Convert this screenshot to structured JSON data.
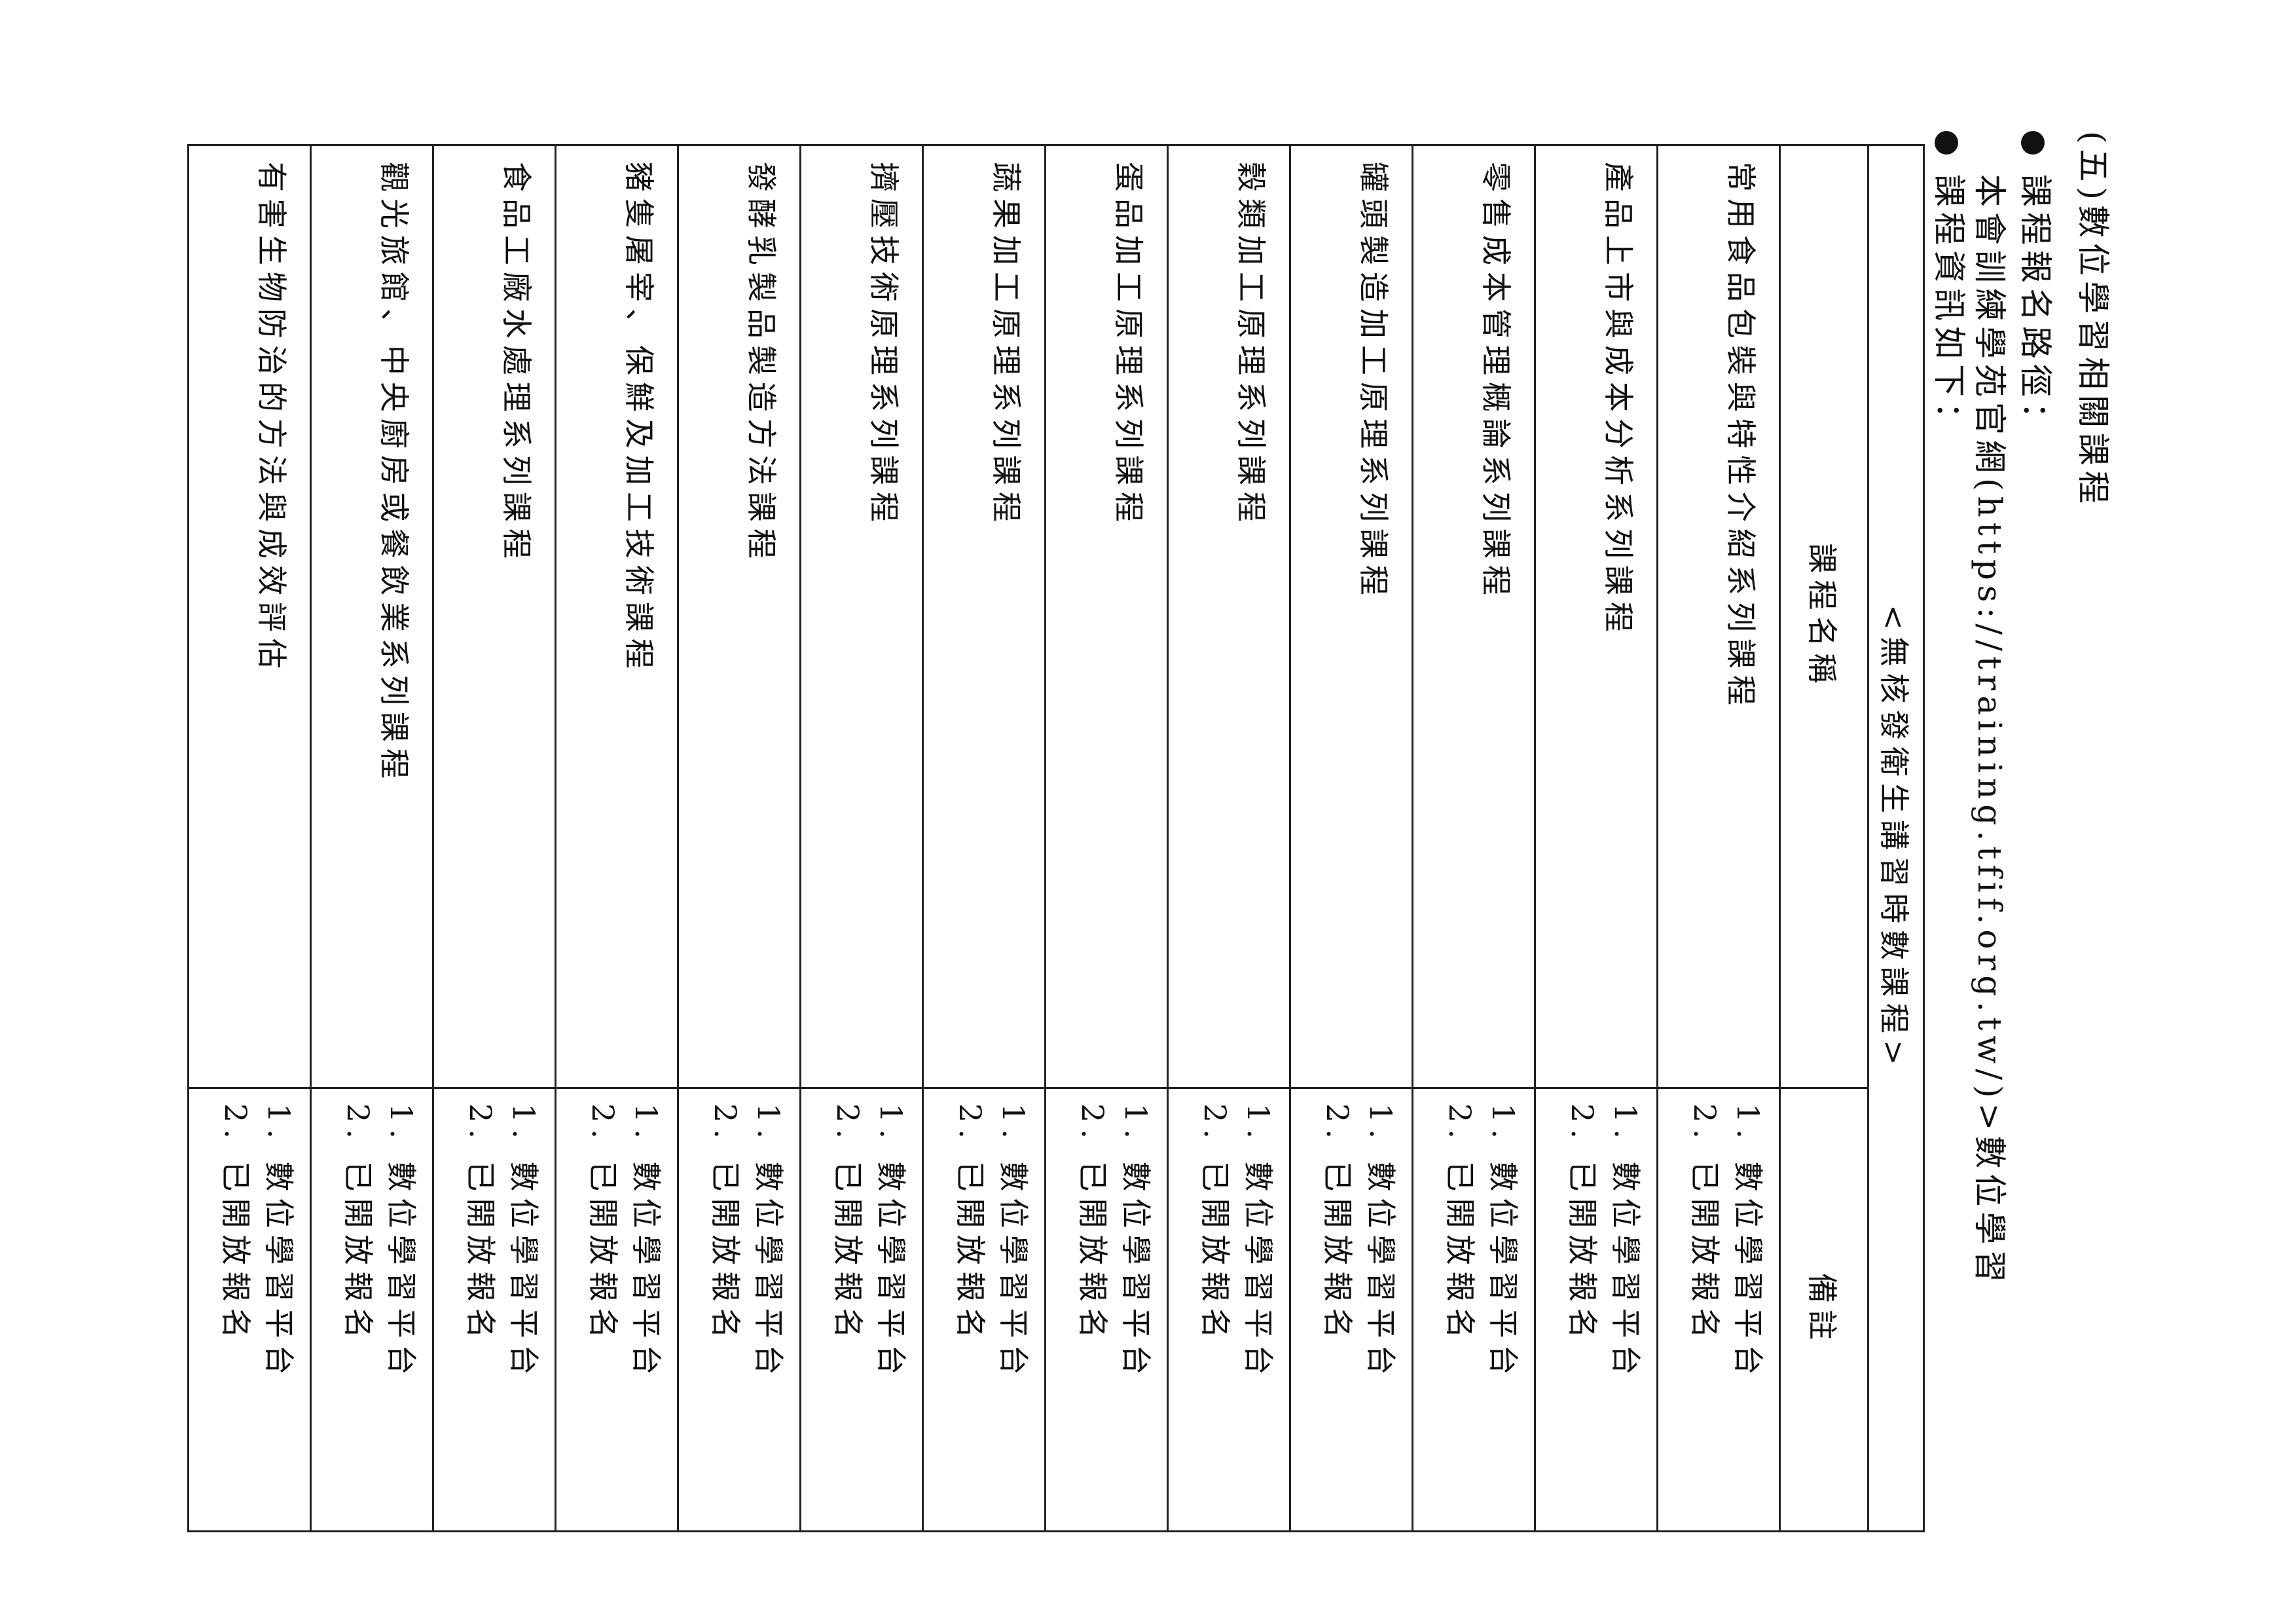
{
  "heading": "(五)數位學習相關課程",
  "path_label": "課程報名路徑：",
  "path_text": "本會訓練學苑官網(https://training.tfif.org.tw/)>數位學習",
  "info_label": "課程資訊如下：",
  "table": {
    "title": "<無核發衛生講習時數課程>",
    "headers": [
      "課程名稱",
      "備註"
    ],
    "rows": [
      {
        "name": "常用食品包裝與特性介紹系列課程",
        "note1": "1. 數位學習平台",
        "note2": "2. 已開放報名"
      },
      {
        "name": "產品上市與成本分析系列課程",
        "note1": "1. 數位學習平台",
        "note2": "2. 已開放報名"
      },
      {
        "name": "零售成本管理概論系列課程",
        "note1": "1. 數位學習平台",
        "note2": "2. 已開放報名"
      },
      {
        "name": "罐頭製造加工原理系列課程",
        "note1": "1. 數位學習平台",
        "note2": "2. 已開放報名"
      },
      {
        "name": "穀類加工原理系列課程",
        "note1": "1. 數位學習平台",
        "note2": "2. 已開放報名"
      },
      {
        "name": "蛋品加工原理系列課程",
        "note1": "1. 數位學習平台",
        "note2": "2. 已開放報名"
      },
      {
        "name": "蔬果加工原理系列課程",
        "note1": "1. 數位學習平台",
        "note2": "2. 已開放報名"
      },
      {
        "name": "擠壓技術原理系列課程",
        "note1": "1. 數位學習平台",
        "note2": "2. 已開放報名"
      },
      {
        "name": "發酵乳製品製造方法課程",
        "note1": "1. 數位學習平台",
        "note2": "2. 已開放報名"
      },
      {
        "name": "豬隻屠宰、保鮮及加工技術課程",
        "note1": "1. 數位學習平台",
        "note2": "2. 已開放報名"
      },
      {
        "name": "食品工廠水處理系列課程",
        "note1": "1. 數位學習平台",
        "note2": "2. 已開放報名"
      },
      {
        "name": "觀光旅館、中央廚房或餐飲業系列課程",
        "note1": "1. 數位學習平台",
        "note2": "2. 已開放報名"
      },
      {
        "name": "有害生物防治的方法與成效評估",
        "note1": "1. 數位學習平台",
        "note2": "2. 已開放報名"
      }
    ]
  }
}
